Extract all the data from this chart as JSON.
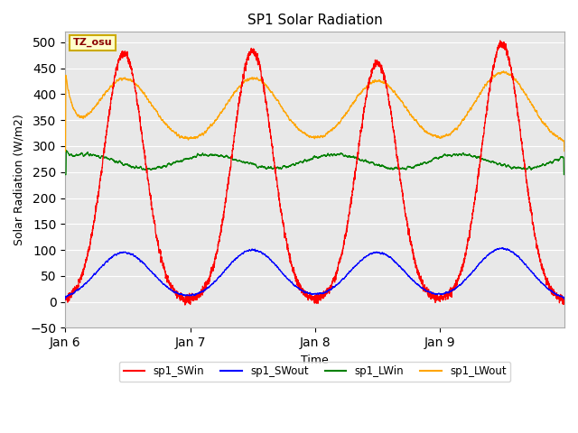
{
  "title": "SP1 Solar Radiation",
  "xlabel": "Time",
  "ylabel": "Solar Radiation (W/m2)",
  "ylim": [
    -50,
    520
  ],
  "yticks": [
    -50,
    0,
    50,
    100,
    150,
    200,
    250,
    300,
    350,
    400,
    450,
    500
  ],
  "tz_label": "TZ_osu",
  "legend_labels": [
    "sp1_SWin",
    "sp1_SWout",
    "sp1_LWin",
    "sp1_LWout"
  ],
  "legend_colors": [
    "red",
    "blue",
    "green",
    "orange"
  ],
  "bg_color": "#e8e8e8",
  "SWin_color": "red",
  "SWout_color": "blue",
  "LWin_color": "green",
  "LWout_color": "orange"
}
